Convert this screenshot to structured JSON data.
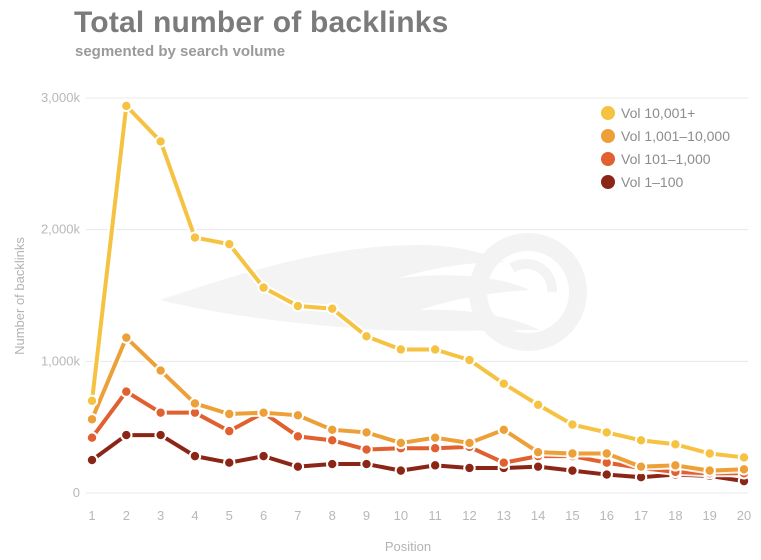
{
  "chart_data": {
    "type": "line",
    "title": "Total number of backlinks",
    "subtitle": "segmented by search volume",
    "xlabel": "Position",
    "ylabel": "Number of backlinks",
    "x": [
      1,
      2,
      3,
      4,
      5,
      6,
      7,
      8,
      9,
      10,
      11,
      12,
      13,
      14,
      15,
      16,
      17,
      18,
      19,
      20
    ],
    "ylim": [
      0,
      3000
    ],
    "yticks": [
      0,
      1000,
      2000,
      3000
    ],
    "ytick_labels": [
      "0",
      "1,000k",
      "2,000k",
      "3,000k"
    ],
    "legend_position": "top-right",
    "grid": true,
    "series": [
      {
        "name": "Vol 10,001+",
        "color": "#f5c242",
        "values": [
          700,
          2940,
          2670,
          1940,
          1890,
          1560,
          1420,
          1400,
          1190,
          1090,
          1090,
          1010,
          830,
          670,
          520,
          460,
          400,
          370,
          300,
          270
        ]
      },
      {
        "name": "Vol 1,001–10,000",
        "color": "#eda038",
        "values": [
          560,
          1180,
          930,
          680,
          600,
          610,
          590,
          480,
          460,
          380,
          420,
          380,
          480,
          310,
          300,
          300,
          200,
          210,
          170,
          180
        ]
      },
      {
        "name": "Vol 101–1,000",
        "color": "#e0602f",
        "values": [
          420,
          770,
          610,
          610,
          470,
          610,
          430,
          400,
          330,
          340,
          340,
          350,
          230,
          280,
          280,
          230,
          190,
          160,
          150,
          150
        ]
      },
      {
        "name": "Vol 1–100",
        "color": "#8b2616",
        "values": [
          250,
          440,
          440,
          280,
          230,
          280,
          200,
          220,
          220,
          170,
          210,
          190,
          190,
          200,
          170,
          140,
          120,
          140,
          130,
          90
        ]
      }
    ]
  }
}
